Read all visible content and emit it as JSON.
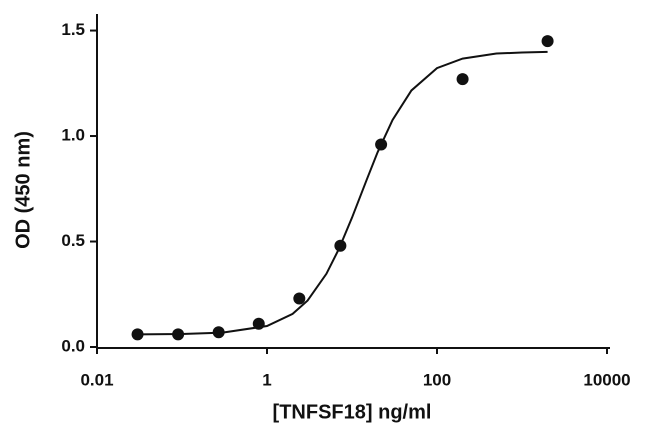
{
  "chart_data": {
    "type": "scatter",
    "x_label": "[TNFSF18] ng/ml",
    "y_label": "OD (450 nm)",
    "x_scale": "log",
    "xlim": [
      0.01,
      10000
    ],
    "xticks": [
      0.01,
      1,
      100,
      10000
    ],
    "ylim": [
      0,
      1.55
    ],
    "yticks": [
      {
        "value": 0,
        "label": "0.0"
      },
      0.5,
      {
        "value": 1,
        "label": "1.0"
      },
      1.5
    ],
    "color": "#111111",
    "x": [
      0.03,
      0.09,
      0.27,
      0.8,
      2.4,
      7.3,
      22,
      200,
      2000
    ],
    "values": [
      0.06,
      0.06,
      0.07,
      0.11,
      0.23,
      0.48,
      0.96,
      1.27,
      1.45
    ],
    "fit": {
      "x": [
        0.03,
        0.1,
        0.3,
        1,
        2,
        3,
        5,
        7,
        10,
        15,
        20,
        30,
        50,
        100,
        200,
        500,
        1000,
        2000
      ],
      "values": [
        0.06,
        0.0618,
        0.0679,
        0.0995,
        0.157,
        0.22,
        0.347,
        0.464,
        0.613,
        0.796,
        0.923,
        1.076,
        1.216,
        1.322,
        1.367,
        1.391,
        1.396,
        1.399
      ]
    }
  }
}
